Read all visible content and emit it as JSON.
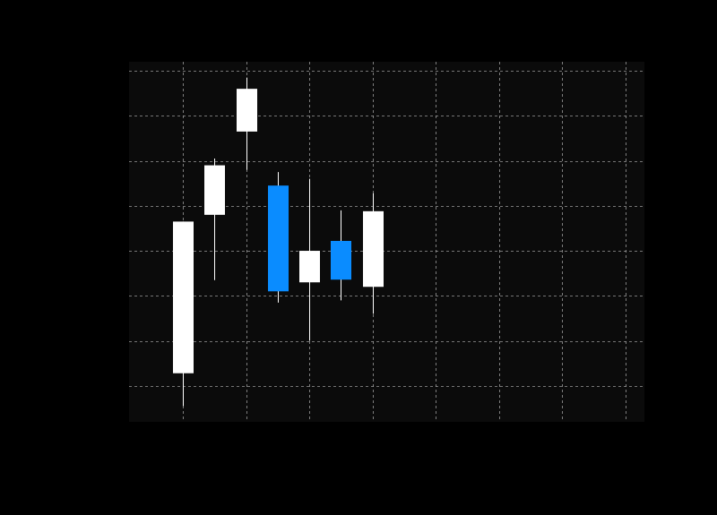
{
  "colors": {
    "figure_background": "#000000",
    "plot_background": "#0b0b0b",
    "grid": "#b4b4b4",
    "up_candle": "#ffffff",
    "down_candle": "#0a8cff",
    "wick": "#ffffff"
  },
  "chart_data": {
    "type": "candlestick",
    "title": "",
    "xlabel": "",
    "ylabel": "",
    "grid": true,
    "grid_style": "dashed",
    "xlim": [
      -0.85,
      7.3
    ],
    "ylim": [
      0,
      8
    ],
    "x_gridlines": [
      0,
      1,
      2,
      3,
      4,
      5,
      6,
      7
    ],
    "y_gridlines": [
      0.8,
      1.8,
      2.8,
      3.8,
      4.8,
      5.8,
      6.8,
      7.8
    ],
    "series": [
      {
        "candles": [
          {
            "x": 0.0,
            "open": 1.08,
            "close": 4.45,
            "high": 4.45,
            "low": 0.35,
            "color": "up"
          },
          {
            "x": 0.5,
            "open": 4.6,
            "close": 5.7,
            "high": 5.85,
            "low": 3.15,
            "color": "up"
          },
          {
            "x": 1.0,
            "open": 6.45,
            "close": 7.4,
            "high": 7.65,
            "low": 5.6,
            "color": "up"
          },
          {
            "x": 1.5,
            "open": 5.25,
            "close": 2.9,
            "high": 5.55,
            "low": 2.65,
            "color": "down"
          },
          {
            "x": 2.0,
            "open": 3.1,
            "close": 3.8,
            "high": 5.4,
            "low": 1.8,
            "color": "up"
          },
          {
            "x": 2.5,
            "open": 4.02,
            "close": 3.16,
            "high": 4.7,
            "low": 2.7,
            "color": "down"
          },
          {
            "x": 3.0,
            "open": 3.0,
            "close": 4.68,
            "high": 5.08,
            "low": 2.4,
            "color": "up"
          }
        ]
      }
    ]
  }
}
